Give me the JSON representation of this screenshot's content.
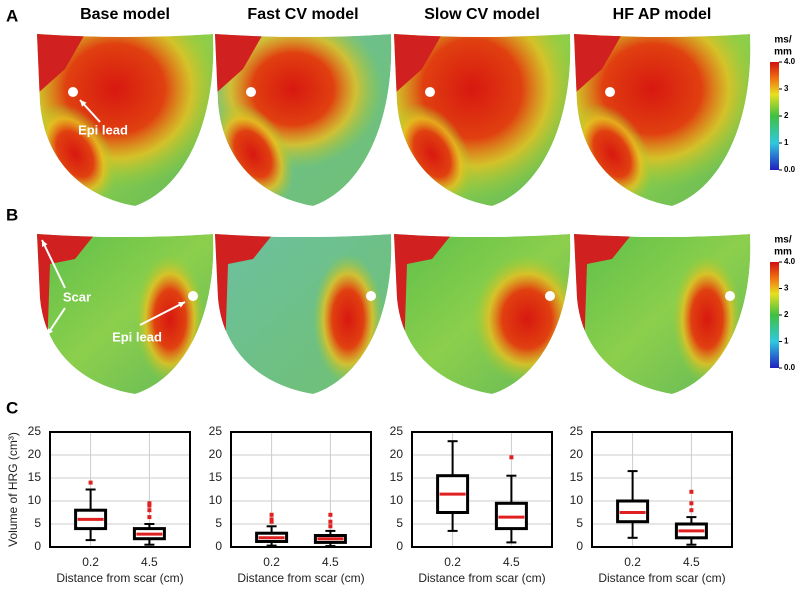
{
  "panels": {
    "a": "A",
    "b": "B",
    "c": "C"
  },
  "models": [
    "Base model",
    "Fast CV model",
    "Slow CV model",
    "HF AP model"
  ],
  "annotations": {
    "epi_lead_a": "Epi lead",
    "epi_lead_b": "Epi lead",
    "scar": "Scar"
  },
  "colorbar": {
    "title_lines": [
      "ms/",
      "mm"
    ],
    "lim": [
      0,
      4
    ],
    "ticks": [
      {
        "value": 0,
        "label": "0.0"
      },
      1,
      2,
      3,
      {
        "value": 4,
        "label": "4.0"
      }
    ]
  },
  "chart_data": [
    {
      "type": "box",
      "ylabel": "Volume of HRG (cm³)",
      "xlabel": "Distance from scar (cm)",
      "categories": [
        "0.2",
        "4.5"
      ],
      "ylim": [
        0,
        25
      ],
      "yticks": [
        0,
        5,
        10,
        15,
        20,
        25
      ],
      "grid": true,
      "boxes": [
        {
          "whislo": 1.5,
          "q1": 4,
          "med": 6,
          "q3": 8,
          "whishi": 12.5,
          "fliers": [
            14
          ]
        },
        {
          "whislo": 0.5,
          "q1": 1.8,
          "med": 2.8,
          "q3": 4,
          "whishi": 5,
          "fliers": [
            6.5,
            8,
            9,
            9.5
          ]
        }
      ]
    },
    {
      "type": "box",
      "xlabel": "Distance from scar (cm)",
      "categories": [
        "0.2",
        "4.5"
      ],
      "ylim": [
        0,
        25
      ],
      "yticks": [
        0,
        5,
        10,
        15,
        20,
        25
      ],
      "grid": true,
      "boxes": [
        {
          "whislo": 0.3,
          "q1": 1.2,
          "med": 2,
          "q3": 3,
          "whishi": 4.5,
          "fliers": [
            5.5,
            6,
            7
          ]
        },
        {
          "whislo": 0.2,
          "q1": 1,
          "med": 1.8,
          "q3": 2.5,
          "whishi": 3.5,
          "fliers": [
            4.5,
            5.5,
            7
          ]
        }
      ]
    },
    {
      "type": "box",
      "xlabel": "Distance from scar (cm)",
      "categories": [
        "0.2",
        "4.5"
      ],
      "ylim": [
        0,
        25
      ],
      "yticks": [
        0,
        5,
        10,
        15,
        20,
        25
      ],
      "grid": true,
      "boxes": [
        {
          "whislo": 3.5,
          "q1": 7.5,
          "med": 11.5,
          "q3": 15.5,
          "whishi": 23,
          "fliers": []
        },
        {
          "whislo": 1,
          "q1": 4,
          "med": 6.5,
          "q3": 9.5,
          "whishi": 15.5,
          "fliers": [
            19.5
          ]
        }
      ]
    },
    {
      "type": "box",
      "xlabel": "Distance from scar (cm)",
      "categories": [
        "0.2",
        "4.5"
      ],
      "ylim": [
        0,
        25
      ],
      "yticks": [
        0,
        5,
        10,
        15,
        20,
        25
      ],
      "grid": true,
      "boxes": [
        {
          "whislo": 2,
          "q1": 5.5,
          "med": 7.5,
          "q3": 10,
          "whishi": 16.5,
          "fliers": []
        },
        {
          "whislo": 0.5,
          "q1": 2,
          "med": 3.5,
          "q3": 5,
          "whishi": 6.5,
          "fliers": [
            8,
            9.5,
            12
          ]
        }
      ]
    }
  ]
}
